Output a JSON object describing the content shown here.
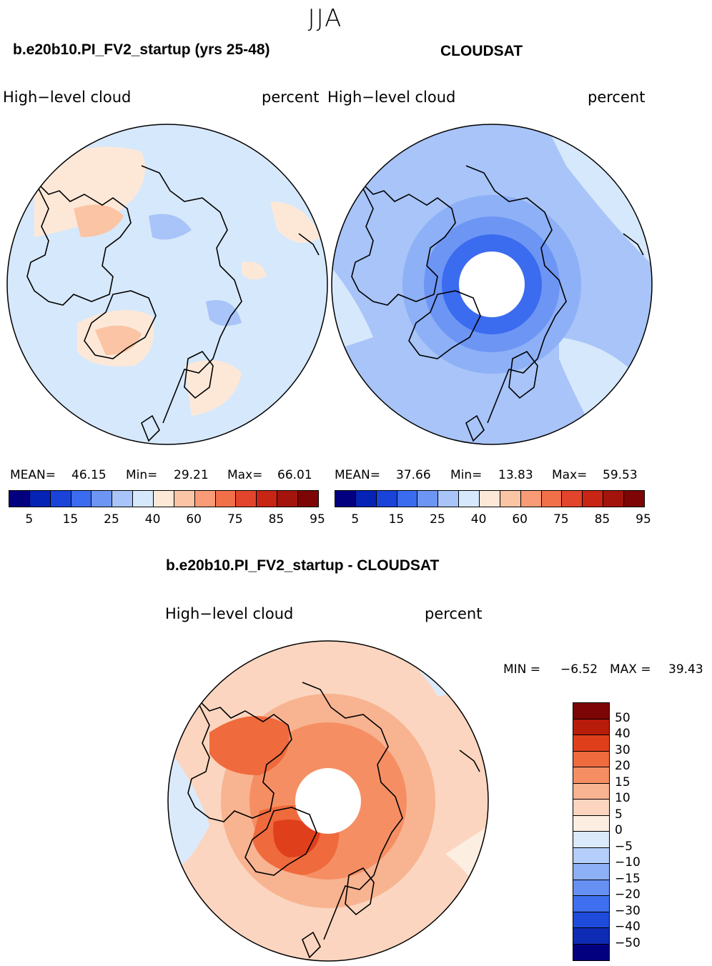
{
  "figure": {
    "season": "JJA",
    "panel_model": {
      "title": "b.e20b10.PI_FV2_startup (yrs 25-48)",
      "variable": "High−level  cloud",
      "units": "percent",
      "mean_label": "MEAN=",
      "mean": "46.15",
      "min_label": "Min=",
      "min": "29.21",
      "max_label": "Max=",
      "max": "66.01"
    },
    "panel_obs": {
      "title": "CLOUDSAT",
      "variable": "High−level  cloud",
      "units": "percent",
      "mean_label": "MEAN=",
      "mean": "37.66",
      "min_label": "Min=",
      "min": "13.83",
      "max_label": "Max=",
      "max": "59.53"
    },
    "panel_diff": {
      "title": "b.e20b10.PI_FV2_startup - CLOUDSAT",
      "variable": "High−level  cloud",
      "units": "percent",
      "min_label": "MIN =",
      "min": "−6.52",
      "max_label": "MAX =",
      "max": "39.43"
    },
    "abs_colorbar": {
      "colors": [
        "#030080",
        "#0523b5",
        "#1a44d9",
        "#3b6bee",
        "#6d95f4",
        "#a8c4f8",
        "#d6e8fb",
        "#fde8d8",
        "#fbc4a4",
        "#f89b76",
        "#f1704a",
        "#e2452b",
        "#c82514",
        "#a3150c",
        "#7d0505"
      ],
      "labels": [
        "5",
        "15",
        "25",
        "40",
        "60",
        "75",
        "85",
        "95"
      ]
    },
    "diff_colorbar": {
      "colors": [
        "#7d0505",
        "#b81c0a",
        "#e03f1c",
        "#ef6a3c",
        "#f58f63",
        "#f8b391",
        "#fbd5bf",
        "#fdeee2",
        "#dbeafb",
        "#b5cffa",
        "#8db0f6",
        "#6690f2",
        "#3f6fee",
        "#1f4bda",
        "#0e2bb4",
        "#030080"
      ],
      "labels": [
        "50",
        "40",
        "30",
        "20",
        "15",
        "10",
        "5",
        "0",
        "−5",
        "−10",
        "−15",
        "−20",
        "−30",
        "−40",
        "−50"
      ]
    }
  },
  "chart_data": [
    {
      "type": "heatmap",
      "projection": "north-polar-stereographic",
      "title": "b.e20b10.PI_FV2_startup (yrs 25-48)",
      "field": "High-level cloud",
      "units": "percent",
      "contour_levels": [
        5,
        10,
        15,
        20,
        25,
        30,
        40,
        50,
        60,
        65,
        70,
        75,
        80,
        85,
        90,
        95
      ],
      "mean": 46.15,
      "min": 29.21,
      "max": 66.01
    },
    {
      "type": "heatmap",
      "projection": "north-polar-stereographic",
      "title": "CLOUDSAT",
      "field": "High-level cloud",
      "units": "percent",
      "contour_levels": [
        5,
        10,
        15,
        20,
        25,
        30,
        40,
        50,
        60,
        65,
        70,
        75,
        80,
        85,
        90,
        95
      ],
      "mean": 37.66,
      "min": 13.83,
      "max": 59.53
    },
    {
      "type": "heatmap",
      "projection": "north-polar-stereographic",
      "title": "b.e20b10.PI_FV2_startup - CLOUDSAT",
      "field": "High-level cloud",
      "units": "percent",
      "contour_levels": [
        -50,
        -40,
        -30,
        -20,
        -15,
        -10,
        -5,
        0,
        5,
        10,
        15,
        20,
        30,
        40,
        50
      ],
      "min": -6.52,
      "max": 39.43
    }
  ]
}
